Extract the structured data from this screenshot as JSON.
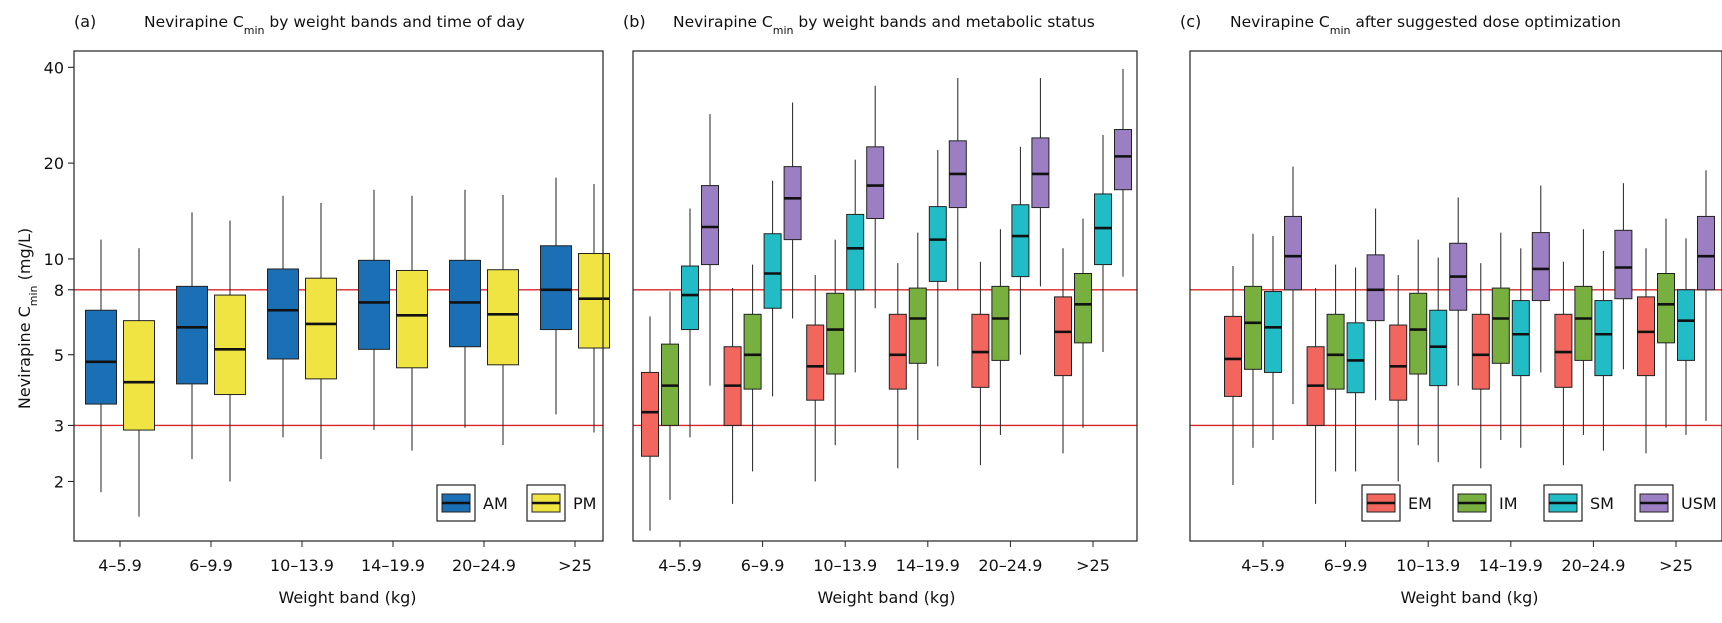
{
  "y_axis_label": "Nevirapine C",
  "y_axis_label_sub": "min",
  "y_axis_label_unit": " (mg/L)",
  "x_axis_label": "Weight band (kg)",
  "categories": [
    "4–5.9",
    "6–9.9",
    "10–13.9",
    "14–19.9",
    "20–24.9",
    ">25"
  ],
  "y_ticks": [
    2,
    3,
    5,
    8,
    10,
    20,
    40
  ],
  "y_scale": "log",
  "y_range": [
    1.3,
    45
  ],
  "reference_lines": [
    3,
    8
  ],
  "reference_line_color": "#d62728",
  "chart_data": [
    {
      "type": "boxplot",
      "panel_label": "(a)",
      "title_pre": "Nevirapine C",
      "title_sub": "min",
      "title_post": " by weight bands and time of day",
      "legend_position": "bottom-right",
      "series": [
        {
          "name": "AM",
          "color": "#1a6fb5",
          "boxes": [
            {
              "min": 1.85,
              "q1": 3.5,
              "median": 4.75,
              "q3": 6.9,
              "max": 11.5
            },
            {
              "min": 2.35,
              "q1": 4.05,
              "median": 6.1,
              "q3": 8.2,
              "max": 14.0
            },
            {
              "min": 2.75,
              "q1": 4.85,
              "median": 6.9,
              "q3": 9.3,
              "max": 15.8
            },
            {
              "min": 2.9,
              "q1": 5.2,
              "median": 7.3,
              "q3": 9.9,
              "max": 16.5
            },
            {
              "min": 2.95,
              "q1": 5.3,
              "median": 7.3,
              "q3": 9.9,
              "max": 16.5
            },
            {
              "min": 3.25,
              "q1": 6.0,
              "median": 8.0,
              "q3": 11.0,
              "max": 18.0
            }
          ]
        },
        {
          "name": "PM",
          "color": "#f0e442",
          "boxes": [
            {
              "min": 1.55,
              "q1": 2.9,
              "median": 4.1,
              "q3": 6.4,
              "max": 10.8
            },
            {
              "min": 2.0,
              "q1": 3.75,
              "median": 5.2,
              "q3": 7.7,
              "max": 13.2
            },
            {
              "min": 2.35,
              "q1": 4.2,
              "median": 6.25,
              "q3": 8.7,
              "max": 15.0
            },
            {
              "min": 2.5,
              "q1": 4.55,
              "median": 6.65,
              "q3": 9.2,
              "max": 15.8
            },
            {
              "min": 2.6,
              "q1": 4.65,
              "median": 6.7,
              "q3": 9.25,
              "max": 15.9
            },
            {
              "min": 2.85,
              "q1": 5.25,
              "median": 7.5,
              "q3": 10.4,
              "max": 17.2
            }
          ]
        }
      ]
    },
    {
      "type": "boxplot",
      "panel_label": "(b)",
      "title_pre": "Nevirapine C",
      "title_sub": "min",
      "title_post": " by weight bands and metabolic status",
      "legend_position": "none",
      "series": [
        {
          "name": "EM",
          "color": "#f2665e",
          "boxes": [
            {
              "min": 1.4,
              "q1": 2.4,
              "median": 3.3,
              "q3": 4.4,
              "max": 6.6
            },
            {
              "min": 1.7,
              "q1": 3.0,
              "median": 4.0,
              "q3": 5.3,
              "max": 8.1
            },
            {
              "min": 2.0,
              "q1": 3.6,
              "median": 4.6,
              "q3": 6.2,
              "max": 8.9
            },
            {
              "min": 2.2,
              "q1": 3.9,
              "median": 5.0,
              "q3": 6.7,
              "max": 9.7
            },
            {
              "min": 2.25,
              "q1": 3.95,
              "median": 5.1,
              "q3": 6.7,
              "max": 9.8
            },
            {
              "min": 2.45,
              "q1": 4.3,
              "median": 5.9,
              "q3": 7.6,
              "max": 10.8
            }
          ]
        },
        {
          "name": "IM",
          "color": "#77b03f",
          "boxes": [
            {
              "min": 1.75,
              "q1": 3.0,
              "median": 4.0,
              "q3": 5.4,
              "max": 7.9
            },
            {
              "min": 2.15,
              "q1": 3.9,
              "median": 5.0,
              "q3": 6.7,
              "max": 9.6
            },
            {
              "min": 2.6,
              "q1": 4.35,
              "median": 6.0,
              "q3": 7.8,
              "max": 11.5
            },
            {
              "min": 2.7,
              "q1": 4.7,
              "median": 6.5,
              "q3": 8.1,
              "max": 12.1
            },
            {
              "min": 2.8,
              "q1": 4.8,
              "median": 6.5,
              "q3": 8.2,
              "max": 12.4
            },
            {
              "min": 2.95,
              "q1": 5.45,
              "median": 7.2,
              "q3": 9.0,
              "max": 13.4
            }
          ]
        },
        {
          "name": "SM",
          "color": "#22bcc6",
          "boxes": [
            {
              "min": 2.75,
              "q1": 6.0,
              "median": 7.7,
              "q3": 9.5,
              "max": 14.4
            },
            {
              "min": 3.7,
              "q1": 7.0,
              "median": 9.0,
              "q3": 12.0,
              "max": 17.6
            },
            {
              "min": 4.4,
              "q1": 8.0,
              "median": 10.8,
              "q3": 13.8,
              "max": 20.5
            },
            {
              "min": 4.6,
              "q1": 8.5,
              "median": 11.5,
              "q3": 14.6,
              "max": 22.0
            },
            {
              "min": 5.0,
              "q1": 8.8,
              "median": 11.8,
              "q3": 14.8,
              "max": 22.5
            },
            {
              "min": 5.1,
              "q1": 9.6,
              "median": 12.5,
              "q3": 16.0,
              "max": 24.5
            }
          ]
        },
        {
          "name": "USM",
          "color": "#9b7fc2",
          "boxes": [
            {
              "min": 4.0,
              "q1": 9.6,
              "median": 12.6,
              "q3": 17.0,
              "max": 28.5
            },
            {
              "min": 6.5,
              "q1": 11.5,
              "median": 15.5,
              "q3": 19.5,
              "max": 31.0
            },
            {
              "min": 7.0,
              "q1": 13.4,
              "median": 17.0,
              "q3": 22.5,
              "max": 35.0
            },
            {
              "min": 8.0,
              "q1": 14.5,
              "median": 18.5,
              "q3": 23.5,
              "max": 37.0
            },
            {
              "min": 8.2,
              "q1": 14.5,
              "median": 18.5,
              "q3": 24.0,
              "max": 37.0
            },
            {
              "min": 8.8,
              "q1": 16.5,
              "median": 21.0,
              "q3": 25.5,
              "max": 39.5
            }
          ]
        }
      ]
    },
    {
      "type": "boxplot",
      "panel_label": "(c)",
      "title_pre": "Nevirapine C",
      "title_sub": "min",
      "title_post": " after suggested dose optimization",
      "legend_position": "bottom-right",
      "series": [
        {
          "name": "EM",
          "color": "#f2665e",
          "boxes": [
            {
              "min": 1.95,
              "q1": 3.7,
              "median": 4.85,
              "q3": 6.6,
              "max": 9.5
            },
            {
              "min": 1.7,
              "q1": 3.0,
              "median": 4.0,
              "q3": 5.3,
              "max": 8.1
            },
            {
              "min": 2.0,
              "q1": 3.6,
              "median": 4.6,
              "q3": 6.2,
              "max": 8.9
            },
            {
              "min": 2.2,
              "q1": 3.9,
              "median": 5.0,
              "q3": 6.7,
              "max": 9.7
            },
            {
              "min": 2.25,
              "q1": 3.95,
              "median": 5.1,
              "q3": 6.7,
              "max": 9.8
            },
            {
              "min": 2.45,
              "q1": 4.3,
              "median": 5.9,
              "q3": 7.6,
              "max": 10.8
            }
          ]
        },
        {
          "name": "IM",
          "color": "#77b03f",
          "boxes": [
            {
              "min": 2.55,
              "q1": 4.5,
              "median": 6.3,
              "q3": 8.2,
              "max": 12.0
            },
            {
              "min": 2.15,
              "q1": 3.9,
              "median": 5.0,
              "q3": 6.7,
              "max": 9.6
            },
            {
              "min": 2.6,
              "q1": 4.35,
              "median": 6.0,
              "q3": 7.8,
              "max": 11.5
            },
            {
              "min": 2.7,
              "q1": 4.7,
              "median": 6.5,
              "q3": 8.1,
              "max": 12.1
            },
            {
              "min": 2.8,
              "q1": 4.8,
              "median": 6.5,
              "q3": 8.2,
              "max": 12.4
            },
            {
              "min": 2.95,
              "q1": 5.45,
              "median": 7.2,
              "q3": 9.0,
              "max": 13.4
            }
          ]
        },
        {
          "name": "SM",
          "color": "#22bcc6",
          "boxes": [
            {
              "min": 2.7,
              "q1": 4.4,
              "median": 6.1,
              "q3": 7.9,
              "max": 11.8
            },
            {
              "min": 2.15,
              "q1": 3.8,
              "median": 4.8,
              "q3": 6.3,
              "max": 9.4
            },
            {
              "min": 2.3,
              "q1": 4.0,
              "median": 5.3,
              "q3": 6.9,
              "max": 10.1
            },
            {
              "min": 2.55,
              "q1": 4.3,
              "median": 5.8,
              "q3": 7.4,
              "max": 10.8
            },
            {
              "min": 2.5,
              "q1": 4.3,
              "median": 5.8,
              "q3": 7.4,
              "max": 10.6
            },
            {
              "min": 2.8,
              "q1": 4.8,
              "median": 6.4,
              "q3": 8.0,
              "max": 11.6
            }
          ]
        },
        {
          "name": "USM",
          "color": "#9b7fc2",
          "boxes": [
            {
              "min": 3.5,
              "q1": 8.0,
              "median": 10.2,
              "q3": 13.6,
              "max": 19.5
            },
            {
              "min": 3.6,
              "q1": 6.4,
              "median": 8.0,
              "q3": 10.3,
              "max": 14.4
            },
            {
              "min": 4.0,
              "q1": 6.9,
              "median": 8.8,
              "q3": 11.2,
              "max": 15.6
            },
            {
              "min": 4.4,
              "q1": 7.4,
              "median": 9.3,
              "q3": 12.1,
              "max": 17.0
            },
            {
              "min": 4.5,
              "q1": 7.5,
              "median": 9.4,
              "q3": 12.3,
              "max": 17.3
            },
            {
              "min": 3.1,
              "q1": 8.0,
              "median": 10.2,
              "q3": 13.6,
              "max": 19.0
            }
          ]
        }
      ]
    }
  ]
}
